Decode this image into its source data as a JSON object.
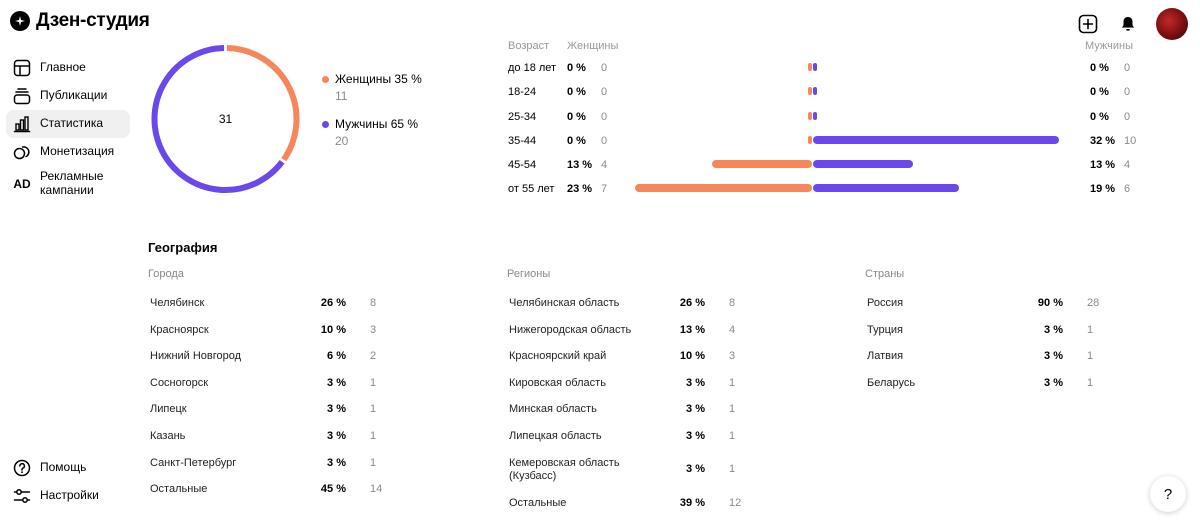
{
  "app": {
    "title": "Дзен-студия"
  },
  "sidebar": {
    "items": [
      {
        "label": "Главное",
        "icon": "layout-icon"
      },
      {
        "label": "Публикации",
        "icon": "stack-icon"
      },
      {
        "label": "Статистика",
        "icon": "bar-chart-icon",
        "active": true
      },
      {
        "label": "Монетизация",
        "icon": "coins-icon"
      },
      {
        "label": "Рекламные кампании",
        "icon": "ad-icon",
        "icon_text": "AD"
      }
    ],
    "bottom": [
      {
        "label": "Помощь",
        "icon": "question-icon"
      },
      {
        "label": "Настройки",
        "icon": "sliders-icon"
      }
    ]
  },
  "gender": {
    "total": "31",
    "women_fraction": 0.35,
    "items": [
      {
        "label": "Женщины 35 %",
        "count": "11",
        "color": "#f5875a"
      },
      {
        "label": "Мужчины 65 %",
        "count": "20",
        "color": "#6b48ec"
      }
    ]
  },
  "age": {
    "headers": {
      "age": "Возраст",
      "women": "Женщины",
      "men": "Мужчины"
    },
    "rows": [
      {
        "label": "до 18 лет",
        "f_pct": "0 %",
        "f_cnt": "0",
        "m_pct": "0 %",
        "m_cnt": "0",
        "f_value": 0,
        "m_value": 0
      },
      {
        "label": "18-24",
        "f_pct": "0 %",
        "f_cnt": "0",
        "m_pct": "0 %",
        "m_cnt": "0",
        "f_value": 0,
        "m_value": 0
      },
      {
        "label": "25-34",
        "f_pct": "0 %",
        "f_cnt": "0",
        "m_pct": "0 %",
        "m_cnt": "0",
        "f_value": 0,
        "m_value": 0
      },
      {
        "label": "35-44",
        "f_pct": "0 %",
        "f_cnt": "0",
        "m_pct": "32 %",
        "m_cnt": "10",
        "f_value": 0,
        "m_value": 32
      },
      {
        "label": "45-54",
        "f_pct": "13 %",
        "f_cnt": "4",
        "m_pct": "13 %",
        "m_cnt": "4",
        "f_value": 13,
        "m_value": 13
      },
      {
        "label": "от 55 лет",
        "f_pct": "23 %",
        "f_cnt": "7",
        "m_pct": "19 %",
        "m_cnt": "6",
        "f_value": 23,
        "m_value": 19
      }
    ]
  },
  "geography": {
    "title": "География",
    "cities": {
      "title": "Города",
      "rows": [
        {
          "name": "Челябинск",
          "pct": "26 %",
          "cnt": "8"
        },
        {
          "name": "Красноярск",
          "pct": "10 %",
          "cnt": "3"
        },
        {
          "name": "Нижний Новгород",
          "pct": "6 %",
          "cnt": "2"
        },
        {
          "name": "Сосногорск",
          "pct": "3 %",
          "cnt": "1"
        },
        {
          "name": "Липецк",
          "pct": "3 %",
          "cnt": "1"
        },
        {
          "name": "Казань",
          "pct": "3 %",
          "cnt": "1"
        },
        {
          "name": "Санкт-Петербург",
          "pct": "3 %",
          "cnt": "1"
        },
        {
          "name": "Остальные",
          "pct": "45 %",
          "cnt": "14"
        }
      ]
    },
    "regions": {
      "title": "Регионы",
      "rows": [
        {
          "name": "Челябинская область",
          "pct": "26 %",
          "cnt": "8"
        },
        {
          "name": "Нижегородская область",
          "pct": "13 %",
          "cnt": "4"
        },
        {
          "name": "Красноярский край",
          "pct": "10 %",
          "cnt": "3"
        },
        {
          "name": "Кировская область",
          "pct": "3 %",
          "cnt": "1"
        },
        {
          "name": "Минская область",
          "pct": "3 %",
          "cnt": "1"
        },
        {
          "name": "Липецкая область",
          "pct": "3 %",
          "cnt": "1"
        },
        {
          "name": "Кемеровская область (Кузбасс)",
          "pct": "3 %",
          "cnt": "1",
          "tall": true
        },
        {
          "name": "Остальные",
          "pct": "39 %",
          "cnt": "12"
        }
      ]
    },
    "countries": {
      "title": "Страны",
      "rows": [
        {
          "name": "Россия",
          "pct": "90 %",
          "cnt": "28"
        },
        {
          "name": "Турция",
          "pct": "3 %",
          "cnt": "1"
        },
        {
          "name": "Латвия",
          "pct": "3 %",
          "cnt": "1"
        },
        {
          "name": "Беларусь",
          "pct": "3 %",
          "cnt": "1"
        }
      ]
    }
  },
  "help_fab": "?"
}
